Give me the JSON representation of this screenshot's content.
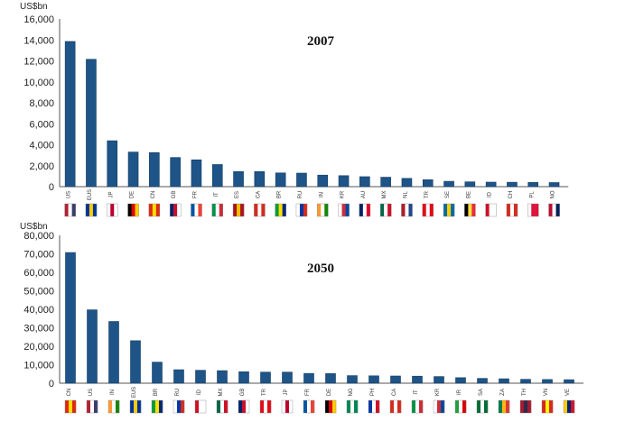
{
  "chart_data": [
    {
      "type": "bar",
      "title": "2007",
      "ylabel": "US$bn",
      "ylim": [
        0,
        16000
      ],
      "yticks": [
        "0",
        "2,000",
        "4,000",
        "6,000",
        "8,000",
        "10,000",
        "12,000",
        "14,000",
        "16,000"
      ],
      "categories": [
        "US",
        "EUS",
        "JP",
        "DE",
        "CN",
        "GB",
        "FR",
        "IT",
        "ES",
        "CA",
        "BR",
        "RU",
        "IN",
        "KR",
        "AU",
        "MX",
        "NL",
        "TR",
        "SE",
        "BE",
        "ID",
        "CH",
        "PL",
        "NO"
      ],
      "values": [
        13850,
        12150,
        4380,
        3300,
        3250,
        2780,
        2560,
        2110,
        1440,
        1440,
        1310,
        1290,
        1100,
        1050,
        950,
        900,
        790,
        660,
        510,
        460,
        430,
        420,
        400,
        390
      ],
      "grid": false,
      "legend": "none",
      "bar_color": "#1e5487"
    },
    {
      "type": "bar",
      "title": "2050",
      "ylabel": "US$bn",
      "ylim": [
        0,
        80000
      ],
      "yticks": [
        "0",
        "10,000",
        "20,000",
        "30,000",
        "40,000",
        "50,000",
        "60,000",
        "70,000",
        "80,000"
      ],
      "categories": [
        "CN",
        "US",
        "IN",
        "EUS",
        "BR",
        "RU",
        "ID",
        "MX",
        "GB",
        "TR",
        "JP",
        "FR",
        "DE",
        "NG",
        "PH",
        "CA",
        "IT",
        "KR",
        "IR",
        "SA",
        "ZA",
        "TH",
        "VN",
        "VE"
      ],
      "values": [
        70700,
        39700,
        33400,
        23000,
        11400,
        7300,
        7000,
        6800,
        6200,
        6000,
        6000,
        5300,
        5200,
        4100,
        4000,
        3900,
        3800,
        3600,
        3000,
        2600,
        2400,
        2100,
        2000,
        1900
      ],
      "grid": false,
      "legend": "none",
      "bar_color": "#1e5487"
    }
  ]
}
